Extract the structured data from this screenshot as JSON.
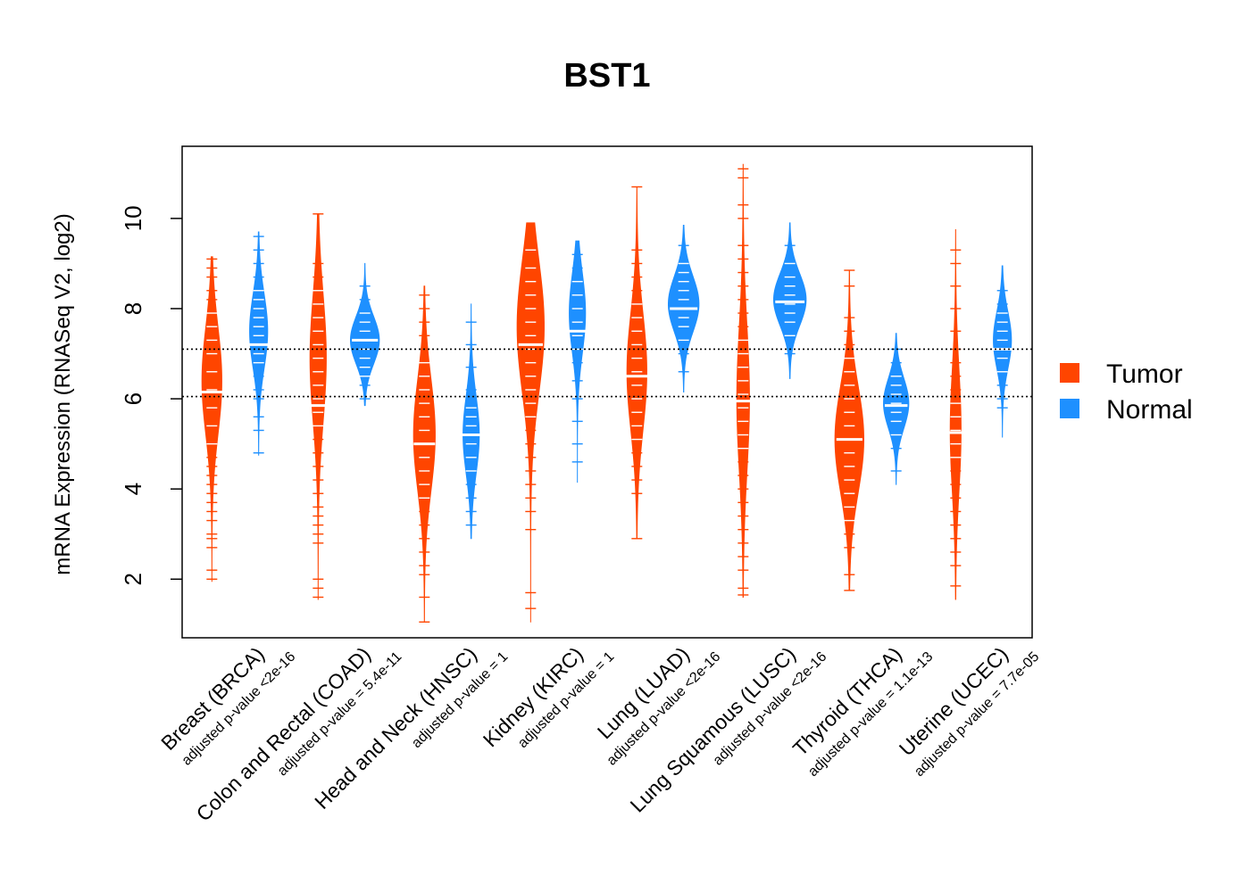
{
  "chart_data": {
    "type": "beanplot",
    "title": "BST1",
    "ylabel": "mRNA Expression (RNASeq V2, log2)",
    "xlabel": "",
    "ylim": [
      0.7,
      11.6
    ],
    "yticks": [
      2,
      4,
      6,
      8,
      10
    ],
    "reference_lines": [
      6.05,
      7.1
    ],
    "legend": [
      {
        "name": "Tumor",
        "color": "#FF4500"
      },
      {
        "name": "Normal",
        "color": "#1E90FF"
      }
    ],
    "categories": [
      {
        "label": "Breast (BRCA)",
        "pvalue": "adjusted p-value <2e-16",
        "tumor": {
          "median": 6.15,
          "min": 1.95,
          "max": 9.15,
          "mode": 6.4,
          "peak": 0.55,
          "points": [
            2.0,
            2.2,
            2.7,
            2.9,
            3.0,
            3.3,
            3.5,
            3.7,
            3.9,
            4.1,
            4.3,
            4.5,
            4.7,
            5.0,
            5.4,
            5.8,
            6.2,
            6.6,
            7.0,
            7.3,
            7.6,
            7.9,
            8.2,
            8.4,
            8.7,
            8.9,
            9.1
          ]
        },
        "normal": {
          "median": 7.2,
          "min": 4.75,
          "max": 9.7,
          "mode": 7.5,
          "peak": 0.5,
          "points": [
            4.8,
            5.3,
            5.6,
            6.0,
            6.2,
            6.5,
            6.8,
            7.0,
            7.2,
            7.4,
            7.6,
            7.8,
            8.0,
            8.2,
            8.4,
            8.7,
            9.0,
            9.3,
            9.6
          ]
        }
      },
      {
        "label": "Colon and Rectal (COAD)",
        "pvalue": "adjusted p-value = 5.4e-11",
        "tumor": {
          "median": 5.85,
          "min": 1.55,
          "max": 10.1,
          "mode": 6.9,
          "peak": 0.45,
          "points": [
            1.6,
            1.8,
            2.0,
            2.8,
            3.0,
            3.2,
            3.4,
            3.6,
            3.9,
            4.2,
            4.5,
            4.8,
            5.1,
            5.4,
            5.7,
            6.0,
            6.3,
            6.6,
            6.9,
            7.2,
            7.5,
            7.8,
            8.1,
            8.4,
            8.7,
            9.0,
            10.1
          ]
        },
        "normal": {
          "median": 7.3,
          "min": 5.85,
          "max": 9.0,
          "mode": 7.3,
          "peak": 0.8,
          "points": [
            6.0,
            6.3,
            6.5,
            6.7,
            6.9,
            7.1,
            7.3,
            7.5,
            7.7,
            7.9,
            8.2,
            8.5
          ]
        }
      },
      {
        "label": "Head and Neck (HNSC)",
        "pvalue": "adjusted p-value = 1",
        "tumor": {
          "median": 5.0,
          "min": 1.05,
          "max": 8.5,
          "mode": 5.2,
          "peak": 0.6,
          "points": [
            1.05,
            1.6,
            2.1,
            2.3,
            2.6,
            2.9,
            3.2,
            3.5,
            3.8,
            4.1,
            4.4,
            4.7,
            5.0,
            5.3,
            5.6,
            5.9,
            6.2,
            6.5,
            6.8,
            7.1,
            7.4,
            7.7,
            8.0,
            8.3
          ]
        },
        "normal": {
          "median": 5.2,
          "min": 2.9,
          "max": 8.1,
          "mode": 5.2,
          "peak": 0.45,
          "points": [
            3.2,
            3.5,
            3.8,
            4.1,
            4.4,
            4.7,
            5.0,
            5.2,
            5.4,
            5.6,
            5.8,
            6.2,
            6.7,
            7.2,
            7.7
          ]
        }
      },
      {
        "label": "Kidney (KIRC)",
        "pvalue": "adjusted p-value = 1",
        "tumor": {
          "median": 7.2,
          "min": 1.05,
          "max": 9.9,
          "mode": 7.6,
          "peak": 0.75,
          "points": [
            1.35,
            1.7,
            3.1,
            3.5,
            3.8,
            4.1,
            4.4,
            4.7,
            5.0,
            5.3,
            5.6,
            5.9,
            6.2,
            6.5,
            6.8,
            7.1,
            7.4,
            7.7,
            8.0,
            8.3,
            8.6,
            8.9,
            9.3
          ]
        },
        "normal": {
          "median": 7.5,
          "min": 4.15,
          "max": 9.5,
          "mode": 7.9,
          "peak": 0.45,
          "points": [
            4.6,
            5.0,
            5.5,
            6.0,
            6.4,
            6.8,
            7.1,
            7.4,
            7.7,
            8.0,
            8.3,
            8.6,
            8.9,
            9.2
          ]
        }
      },
      {
        "label": "Lung (LUAD)",
        "pvalue": "adjusted p-value <2e-16",
        "tumor": {
          "median": 6.5,
          "min": 2.9,
          "max": 10.7,
          "mode": 6.6,
          "peak": 0.55,
          "points": [
            2.9,
            3.9,
            4.2,
            4.5,
            4.8,
            5.1,
            5.4,
            5.7,
            6.0,
            6.3,
            6.6,
            6.9,
            7.2,
            7.5,
            7.8,
            8.1,
            8.4,
            8.7,
            9.0,
            9.3,
            10.7
          ]
        },
        "normal": {
          "median": 8.0,
          "min": 6.15,
          "max": 9.85,
          "mode": 8.1,
          "peak": 0.85,
          "points": [
            6.6,
            7.0,
            7.3,
            7.6,
            7.8,
            8.0,
            8.2,
            8.4,
            8.6,
            8.8,
            9.0,
            9.4
          ]
        }
      },
      {
        "label": "Lung Squamous (LUSC)",
        "pvalue": "adjusted p-value <2e-16",
        "tumor": {
          "median": 5.95,
          "min": 1.6,
          "max": 11.2,
          "mode": 6.0,
          "peak": 0.35,
          "points": [
            1.65,
            1.8,
            2.2,
            2.5,
            2.8,
            3.1,
            3.4,
            3.7,
            4.0,
            4.3,
            4.6,
            4.9,
            5.2,
            5.5,
            5.8,
            6.1,
            6.4,
            6.7,
            7.0,
            7.3,
            7.6,
            7.9,
            8.2,
            8.5,
            8.8,
            9.1,
            9.4,
            10.0,
            10.3,
            10.9,
            11.1
          ]
        },
        "normal": {
          "median": 8.15,
          "min": 6.45,
          "max": 9.9,
          "mode": 8.2,
          "peak": 0.9,
          "points": [
            7.0,
            7.4,
            7.7,
            7.9,
            8.1,
            8.3,
            8.5,
            8.7,
            9.0,
            9.4
          ]
        }
      },
      {
        "label": "Thyroid (THCA)",
        "pvalue": "adjusted p-value = 1.1e-13",
        "tumor": {
          "median": 5.1,
          "min": 1.75,
          "max": 8.85,
          "mode": 5.1,
          "peak": 0.8,
          "points": [
            1.75,
            2.1,
            2.7,
            3.0,
            3.3,
            3.6,
            3.9,
            4.2,
            4.5,
            4.8,
            5.1,
            5.4,
            5.7,
            6.0,
            6.3,
            6.6,
            6.9,
            7.2,
            7.5,
            7.8,
            8.5,
            8.85
          ]
        },
        "normal": {
          "median": 5.85,
          "min": 4.1,
          "max": 7.45,
          "mode": 5.9,
          "peak": 0.7,
          "points": [
            4.4,
            4.9,
            5.2,
            5.5,
            5.7,
            5.9,
            6.1,
            6.3,
            6.5,
            6.8,
            7.1
          ]
        }
      },
      {
        "label": "Uterine (UCEC)",
        "pvalue": "adjusted p-value = 7.7e-05",
        "tumor": {
          "median": 5.25,
          "min": 1.55,
          "max": 9.75,
          "mode": 5.3,
          "peak": 0.3,
          "points": [
            1.85,
            2.3,
            2.6,
            2.9,
            3.2,
            3.5,
            3.8,
            4.1,
            4.4,
            4.7,
            5.0,
            5.3,
            5.6,
            5.9,
            6.2,
            6.5,
            6.8,
            7.1,
            7.5,
            8.0,
            8.5,
            9.0,
            9.3
          ]
        },
        "normal": {
          "median": 7.1,
          "min": 5.15,
          "max": 8.95,
          "mode": 7.3,
          "peak": 0.5,
          "points": [
            5.8,
            6.0,
            6.3,
            6.6,
            6.9,
            7.1,
            7.3,
            7.5,
            7.7,
            7.9,
            8.1,
            8.4
          ]
        }
      }
    ]
  }
}
